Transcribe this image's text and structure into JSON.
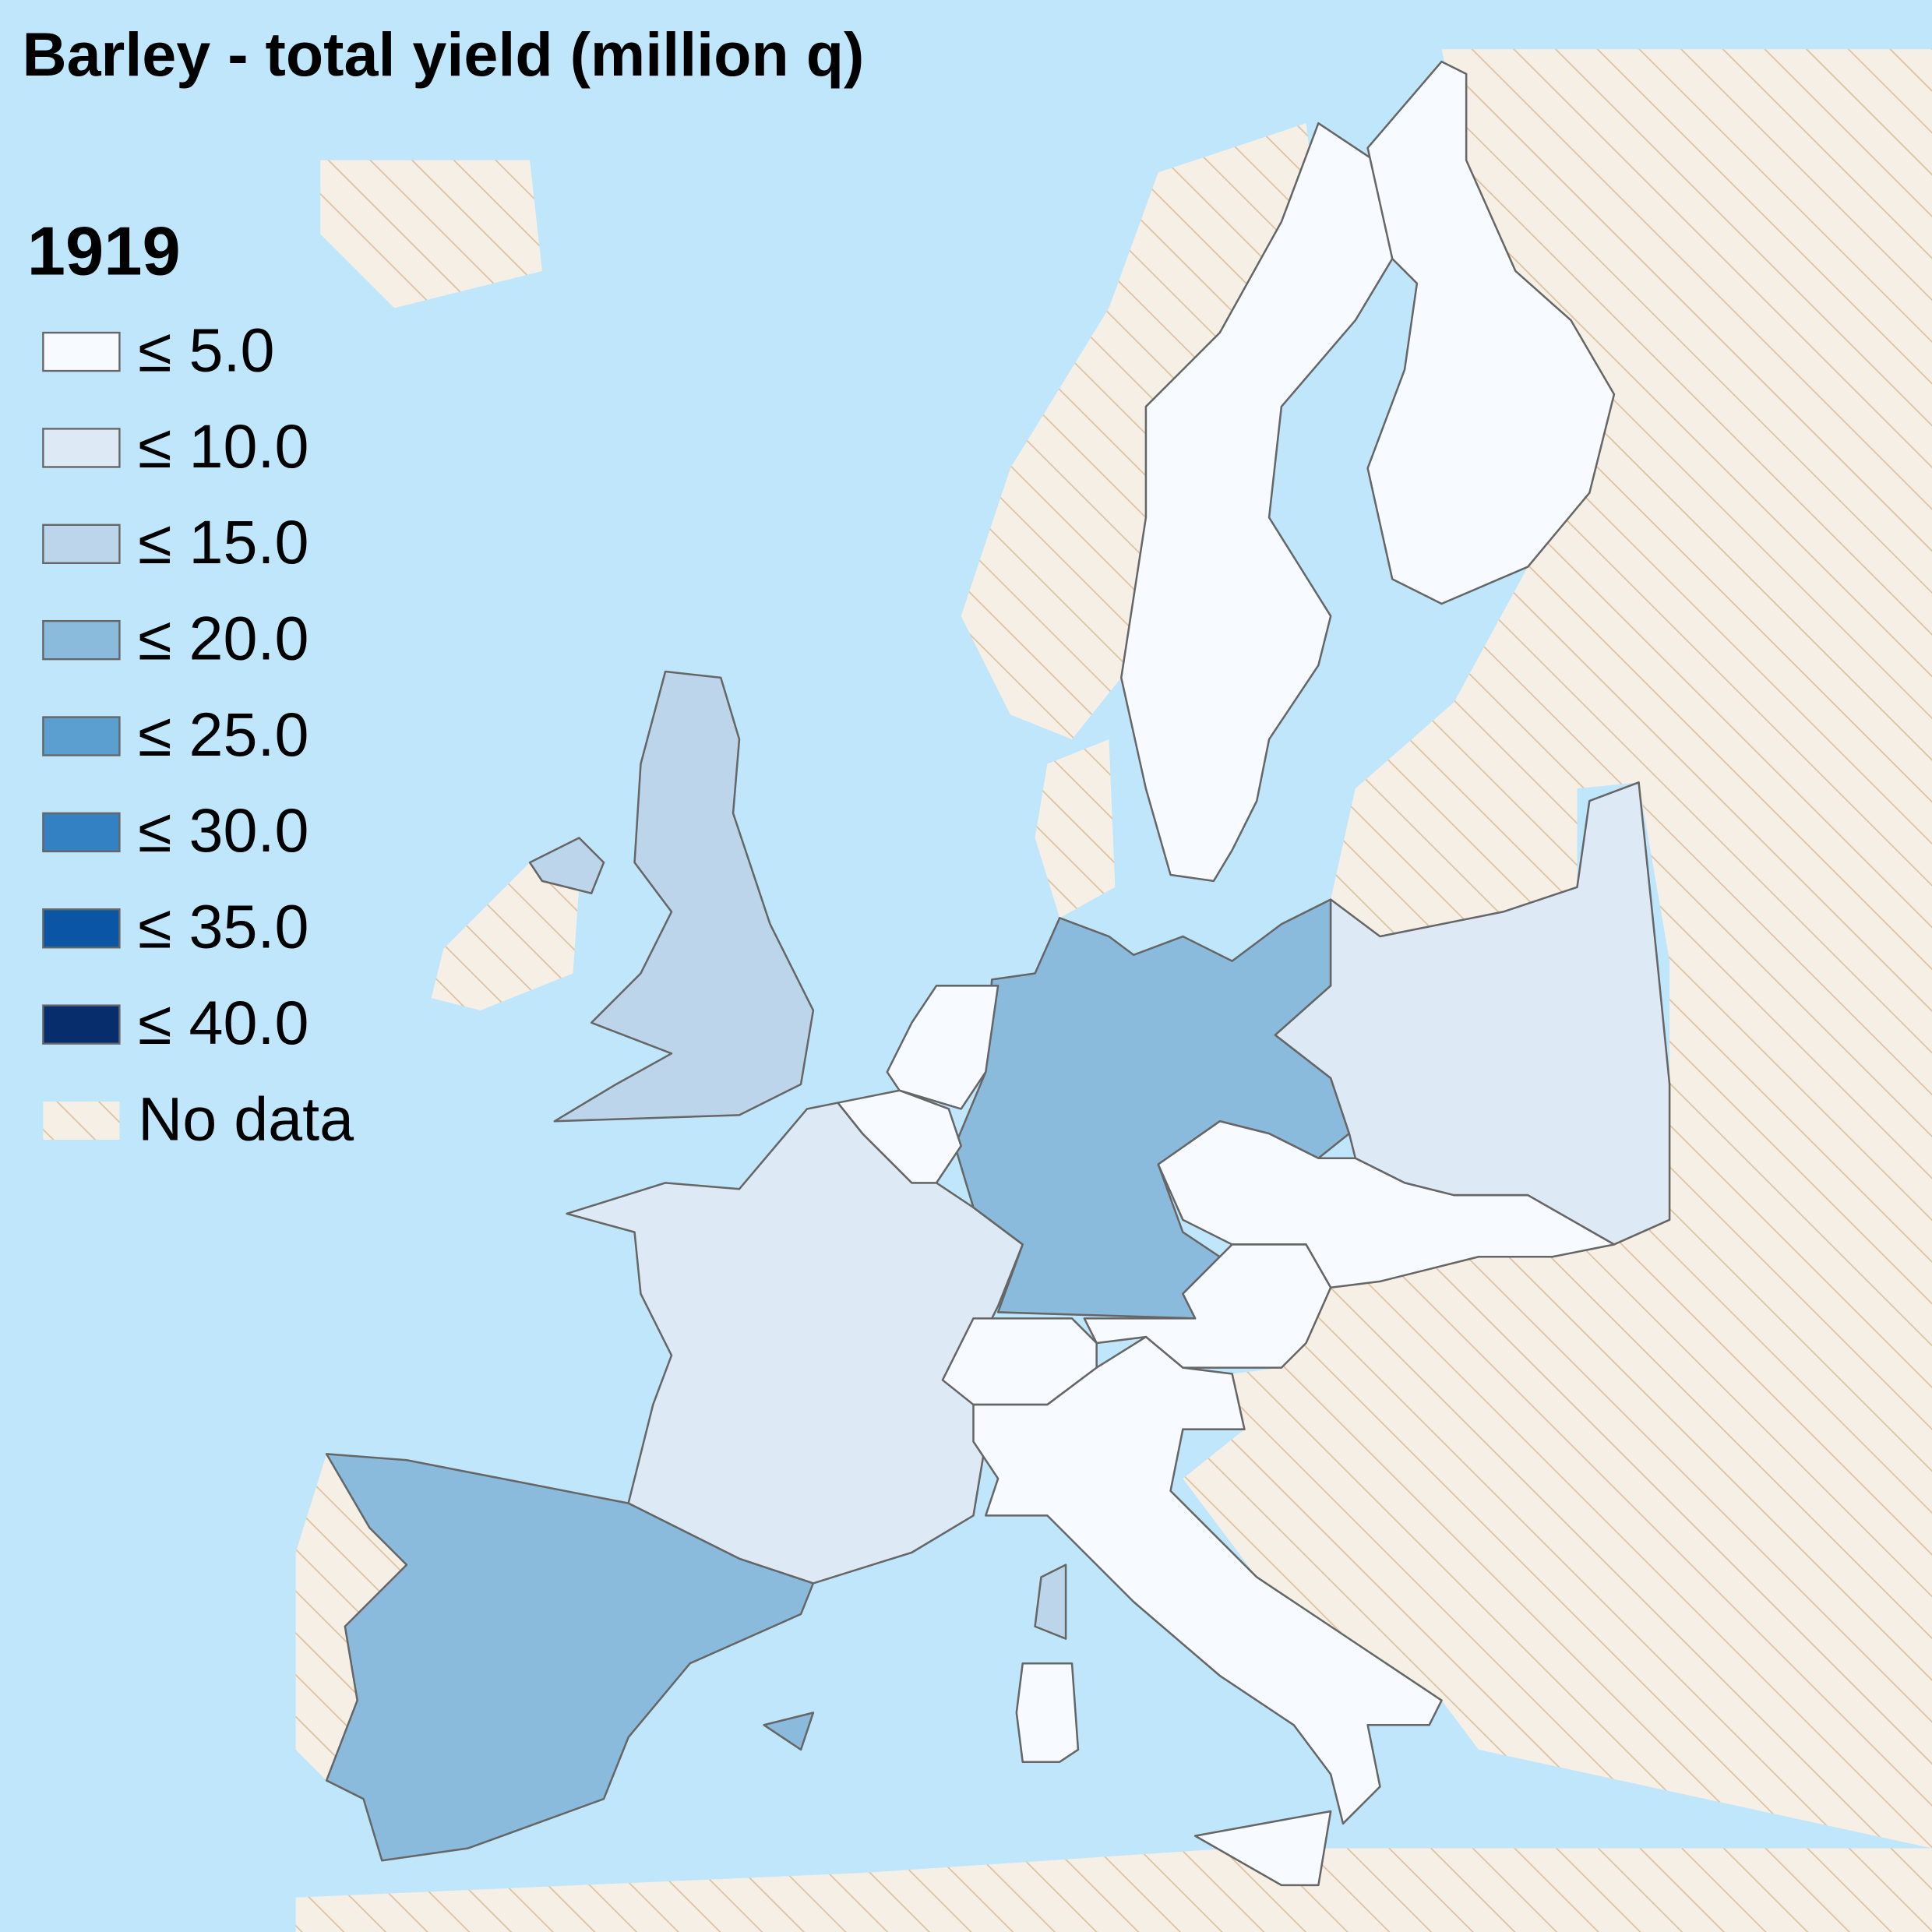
{
  "title": "Barley - total yield (million q)",
  "year": "1919",
  "sea_color": "#bfe6fb",
  "legend": {
    "items": [
      {
        "label": "≤ 5.0",
        "color": "#f7fbff"
      },
      {
        "label": "≤ 10.0",
        "color": "#dde9f5"
      },
      {
        "label": "≤ 15.0",
        "color": "#bcd5ea"
      },
      {
        "label": "≤ 20.0",
        "color": "#8abbdc"
      },
      {
        "label": "≤ 25.0",
        "color": "#5a9fd0"
      },
      {
        "label": "≤ 30.0",
        "color": "#3380c2"
      },
      {
        "label": "≤ 35.0",
        "color": "#0b56a4"
      },
      {
        "label": "≤ 40.0",
        "color": "#082d6c"
      },
      {
        "label": "No data",
        "color": "#f5efe6",
        "hatch": "#dcc2a0"
      }
    ]
  }
}
